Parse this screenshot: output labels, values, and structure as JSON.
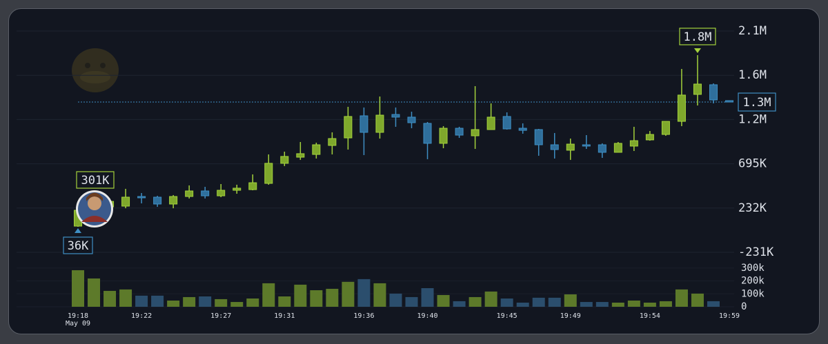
{
  "chart_data": {
    "type": "candlestick",
    "categories": [
      "19:18",
      null,
      null,
      null,
      "19:22",
      null,
      null,
      null,
      null,
      "19:27",
      null,
      null,
      null,
      "19:31",
      null,
      null,
      null,
      null,
      "19:36",
      null,
      null,
      null,
      "19:40",
      null,
      null,
      null,
      null,
      "19:45",
      null,
      null,
      null,
      "19:49",
      null,
      null,
      null,
      null,
      "19:54",
      null,
      null,
      null,
      null,
      "19:59"
    ],
    "date_label": "May 09",
    "open": [
      43000,
      158000,
      245000,
      252000,
      353000,
      346000,
      274000,
      353000,
      411000,
      360000,
      418000,
      425000,
      490000,
      700000,
      764000,
      793000,
      887000,
      966000,
      1197000,
      1024000,
      1211000,
      1183000,
      1118000,
      909000,
      1067000,
      988000,
      1053000,
      1190000,
      1067000,
      1053000,
      894000,
      837000,
      894000,
      894000,
      815000,
      880000,
      945000,
      1002000,
      1139000,
      1421000,
      1522000,
      1356000
    ],
    "high": [
      223000,
      274000,
      332000,
      433000,
      389000,
      360000,
      368000,
      469000,
      454000,
      483000,
      476000,
      584000,
      793000,
      822000,
      923000,
      916000,
      1024000,
      1291000,
      1284000,
      1399000,
      1284000,
      1240000,
      1132000,
      1089000,
      1082000,
      1507000,
      1327000,
      1233000,
      1118000,
      1060000,
      1017000,
      959000,
      995000,
      909000,
      923000,
      1082000,
      1038000,
      1139000,
      1687000,
      1832000,
      1536000,
      1356000
    ],
    "low": [
      36000,
      137000,
      223000,
      230000,
      281000,
      245000,
      230000,
      332000,
      332000,
      346000,
      382000,
      418000,
      476000,
      671000,
      736000,
      750000,
      793000,
      844000,
      786000,
      959000,
      1082000,
      1067000,
      743000,
      858000,
      966000,
      851000,
      1053000,
      1053000,
      1010000,
      779000,
      750000,
      736000,
      851000,
      757000,
      815000,
      829000,
      937000,
      988000,
      1089000,
      1305000,
      1327000,
      1341000
    ],
    "close": [
      209000,
      245000,
      302000,
      346000,
      339000,
      274000,
      353000,
      411000,
      360000,
      418000,
      440000,
      497000,
      700000,
      772000,
      801000,
      894000,
      959000,
      1190000,
      1024000,
      1204000,
      1183000,
      1125000,
      909000,
      1067000,
      995000,
      1053000,
      1183000,
      1060000,
      1045000,
      894000,
      844000,
      901000,
      880000,
      815000,
      909000,
      937000,
      1002000,
      1139000,
      1414000,
      1529000,
      1363000,
      1341000
    ],
    "up_color": "#a4d23c",
    "down_color": "#3f8fc4",
    "ylim": [
      -231000,
      2084000
    ],
    "yticks": [
      {
        "value": -231000,
        "label": "-231K"
      },
      {
        "value": 232000,
        "label": "232K"
      },
      {
        "value": 695000,
        "label": "695K"
      },
      {
        "value": 1158000,
        "label": "1.2M"
      },
      {
        "value": 1621000,
        "label": "1.6M"
      },
      {
        "value": 2084000,
        "label": "2.1M"
      }
    ],
    "grid": true,
    "high_label": {
      "value": 1832000,
      "label": "1.8M"
    },
    "low_label": {
      "value": 36000,
      "label": "36K"
    },
    "last_price": {
      "value": 1341000,
      "label": "1.3M"
    },
    "marker_text": "301K",
    "volume": {
      "values": [
        283000,
        219000,
        123000,
        134000,
        86000,
        86000,
        48000,
        75000,
        80000,
        59000,
        37000,
        64000,
        182000,
        80000,
        171000,
        128000,
        139000,
        193000,
        214000,
        182000,
        102000,
        75000,
        144000,
        91000,
        43000,
        75000,
        118000,
        64000,
        32000,
        70000,
        70000,
        96000,
        37000,
        37000,
        32000,
        48000,
        32000,
        43000,
        134000,
        102000,
        43000,
        0
      ],
      "ylim": [
        0,
        320000
      ],
      "yticks": [
        0,
        {
          "value": 100000,
          "label": "100k"
        },
        {
          "value": 200000,
          "label": "200k"
        },
        {
          "value": 300000,
          "label": "300k"
        }
      ],
      "up_color": "#5d7a2a",
      "down_color": "#2b4e6d"
    }
  }
}
